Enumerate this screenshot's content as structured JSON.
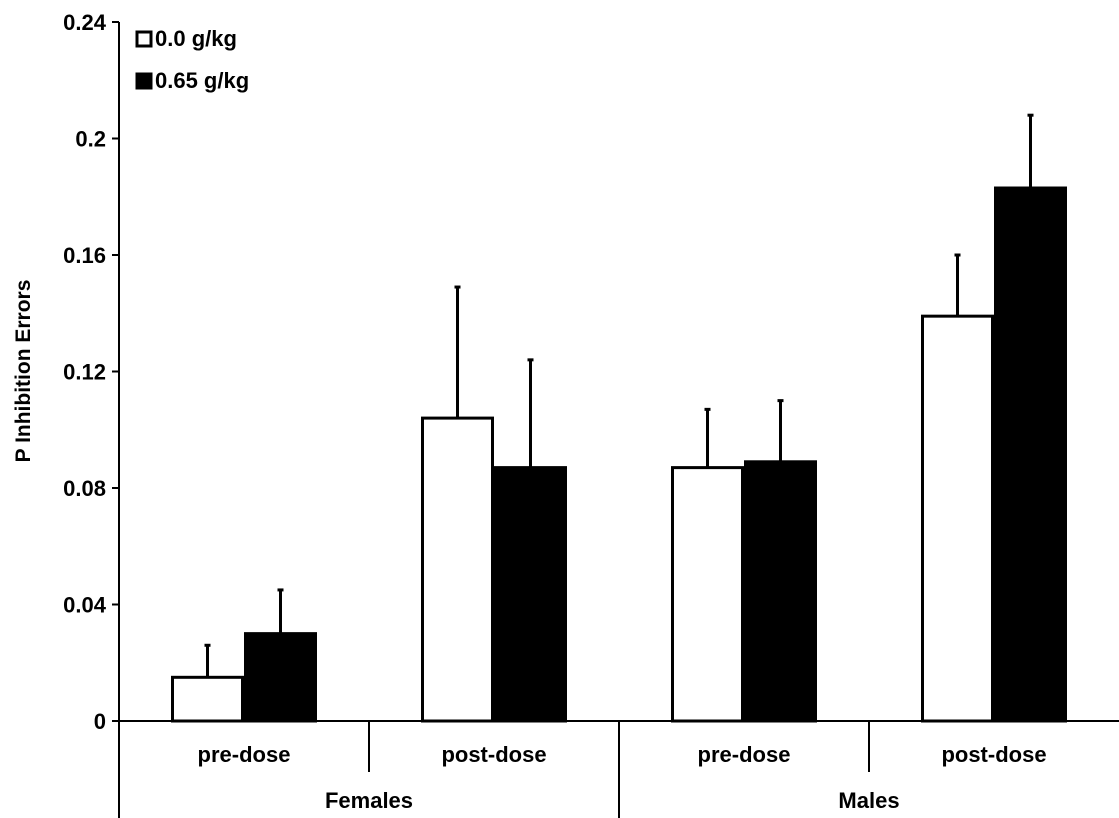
{
  "chart_data": {
    "type": "bar",
    "title": "",
    "xlabel": "",
    "ylabel": "P Inhibition Errors",
    "ylim": [
      0,
      0.24
    ],
    "yticks": [
      0,
      0.04,
      0.08,
      0.12,
      0.16,
      0.2,
      0.24
    ],
    "ytick_labels": [
      "0",
      "0.04",
      "0.08",
      "0.12",
      "0.16",
      "0.2",
      "0.24"
    ],
    "categories": [
      "pre-dose",
      "post-dose",
      "pre-dose",
      "post-dose"
    ],
    "groups": [
      {
        "label": "Females",
        "categories": [
          0,
          1
        ]
      },
      {
        "label": "Males",
        "categories": [
          2,
          3
        ]
      }
    ],
    "series": [
      {
        "name": "0.0 g/kg",
        "fill": "#ffffff",
        "values": [
          0.015,
          0.104,
          0.087,
          0.139
        ],
        "errors": [
          0.011,
          0.045,
          0.02,
          0.021
        ]
      },
      {
        "name": "0.65 g/kg",
        "fill": "#000000",
        "values": [
          0.03,
          0.087,
          0.089,
          0.183
        ],
        "errors": [
          0.015,
          0.037,
          0.021,
          0.025
        ]
      }
    ],
    "legend_position": "top-left",
    "grid": false
  }
}
